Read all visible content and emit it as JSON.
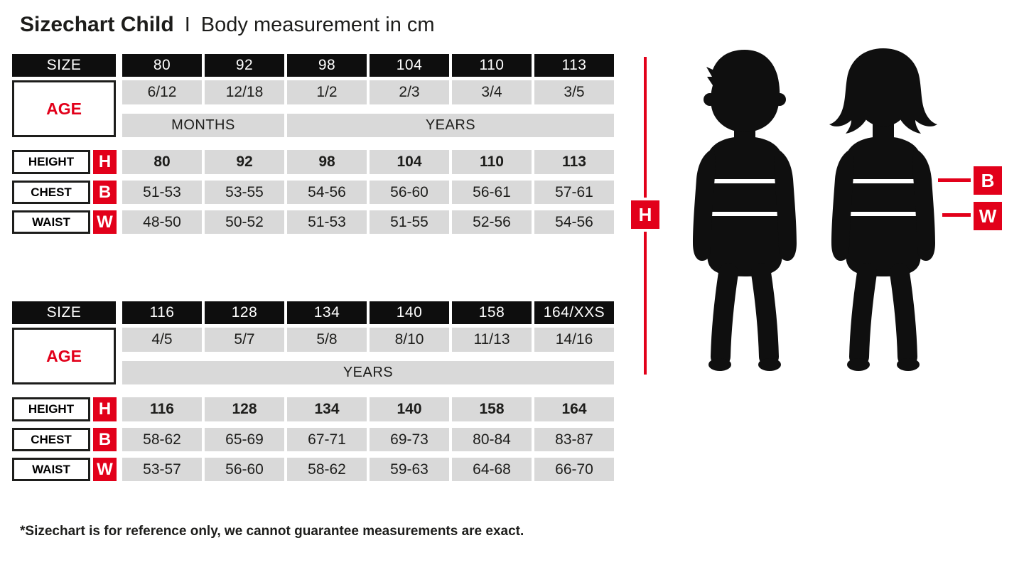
{
  "title": {
    "main": "Sizechart Child",
    "separator": "I",
    "subtitle": "Body measurement in cm"
  },
  "colors": {
    "accent_red": "#e2001a",
    "cell_black": "#0e0e0e",
    "cell_gray": "#d9d9d9"
  },
  "row_labels": {
    "size": "SIZE",
    "age": "AGE",
    "height": "HEIGHT",
    "chest": "CHEST",
    "waist": "WAIST"
  },
  "measure_keys": {
    "height": "H",
    "chest": "B",
    "waist": "W"
  },
  "figure": {
    "height_marker": "H",
    "chest_marker": "B",
    "waist_marker": "W"
  },
  "tables": [
    {
      "sizes": [
        "80",
        "92",
        "98",
        "104",
        "110",
        "113"
      ],
      "ages": [
        "6/12",
        "12/18",
        "1/2",
        "2/3",
        "3/4",
        "3/5"
      ],
      "units": [
        {
          "label": "MONTHS",
          "span": 2
        },
        {
          "label": "YEARS",
          "span": 4
        }
      ],
      "height": [
        "80",
        "92",
        "98",
        "104",
        "110",
        "113"
      ],
      "chest": [
        "51-53",
        "53-55",
        "54-56",
        "56-60",
        "56-61",
        "57-61"
      ],
      "waist": [
        "48-50",
        "50-52",
        "51-53",
        "51-55",
        "52-56",
        "54-56"
      ]
    },
    {
      "sizes": [
        "116",
        "128",
        "134",
        "140",
        "158",
        "164/XXS"
      ],
      "ages": [
        "4/5",
        "5/7",
        "5/8",
        "8/10",
        "11/13",
        "14/16"
      ],
      "units": [
        {
          "label": "YEARS",
          "span": 6
        }
      ],
      "height": [
        "116",
        "128",
        "134",
        "140",
        "158",
        "164"
      ],
      "chest": [
        "58-62",
        "65-69",
        "67-71",
        "69-73",
        "80-84",
        "83-87"
      ],
      "waist": [
        "53-57",
        "56-60",
        "58-62",
        "59-63",
        "64-68",
        "66-70"
      ]
    }
  ],
  "footnote": "*Sizechart is for reference only, we cannot guarantee measurements are exact."
}
